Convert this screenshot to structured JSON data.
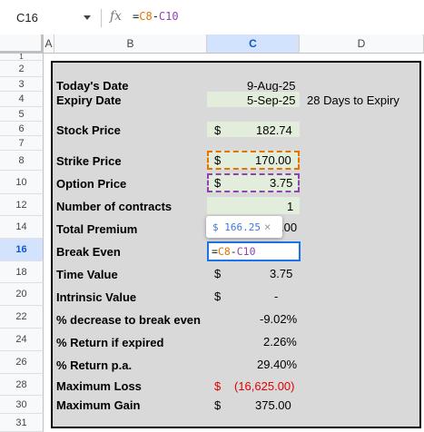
{
  "formula_bar": {
    "name_box": "C16",
    "fx_symbol": "fx",
    "formula_eq": "=",
    "formula_ref1": "C8",
    "formula_op": "-",
    "formula_ref2": "C10"
  },
  "columns": [
    "A",
    "B",
    "C",
    "D"
  ],
  "selected_column": "C",
  "rows": [
    "1",
    "2",
    "3",
    "4",
    "5",
    "6",
    "7",
    "8",
    "10",
    "12",
    "14",
    "16",
    "18",
    "20",
    "22",
    "24",
    "26",
    "28",
    "30",
    "31"
  ],
  "selected_row": "16",
  "sheet": {
    "todays_date_label": "Today's Date",
    "todays_date_value": "9-Aug-25",
    "expiry_date_label": "Expiry Date",
    "expiry_date_value": "5-Sep-25",
    "days_to_expiry": "28 Days to Expiry",
    "stock_price_label": "Stock Price",
    "stock_price_currency": "$",
    "stock_price_value": "182.74",
    "strike_price_label": "Strike Price",
    "strike_price_currency": "$",
    "strike_price_value": "170.00",
    "option_price_label": "Option Price",
    "option_price_currency": "$",
    "option_price_value": "3.75",
    "contracts_label": "Number of contracts",
    "contracts_value": "1",
    "total_premium_label": "Total Premium",
    "total_premium_partial": ".00",
    "break_even_label": "Break Even",
    "time_value_label": "Time Value",
    "time_value_currency": "$",
    "time_value_value": "3.75",
    "intrinsic_value_label": "Intrinsic Value",
    "intrinsic_value_currency": "$",
    "intrinsic_value_value": "-",
    "pct_decrease_label": "% decrease to break even",
    "pct_decrease_value": "-9.02%",
    "return_expired_label": "% Return if expired",
    "return_expired_value": "2.26%",
    "return_pa_label": "% Return p.a.",
    "return_pa_value": "29.40%",
    "max_loss_label": "Maximum Loss",
    "max_loss_currency": "$",
    "max_loss_value": "(16,625.00)",
    "max_gain_label": "Maximum Gain",
    "max_gain_currency": "$",
    "max_gain_value": "375.00"
  },
  "editor": {
    "preview_value": "$ 166.25",
    "preview_close": "×",
    "cell_eq": "=",
    "cell_ref1": "C8",
    "cell_op": "-",
    "cell_ref2": "C10"
  },
  "colors": {
    "input_fill": "#e2eedb",
    "box_fill": "#d9d9d9",
    "ref1_color": "#e37400",
    "ref2_color": "#8e44ad",
    "negative": "#e00000",
    "selection": "#1a73e8"
  }
}
